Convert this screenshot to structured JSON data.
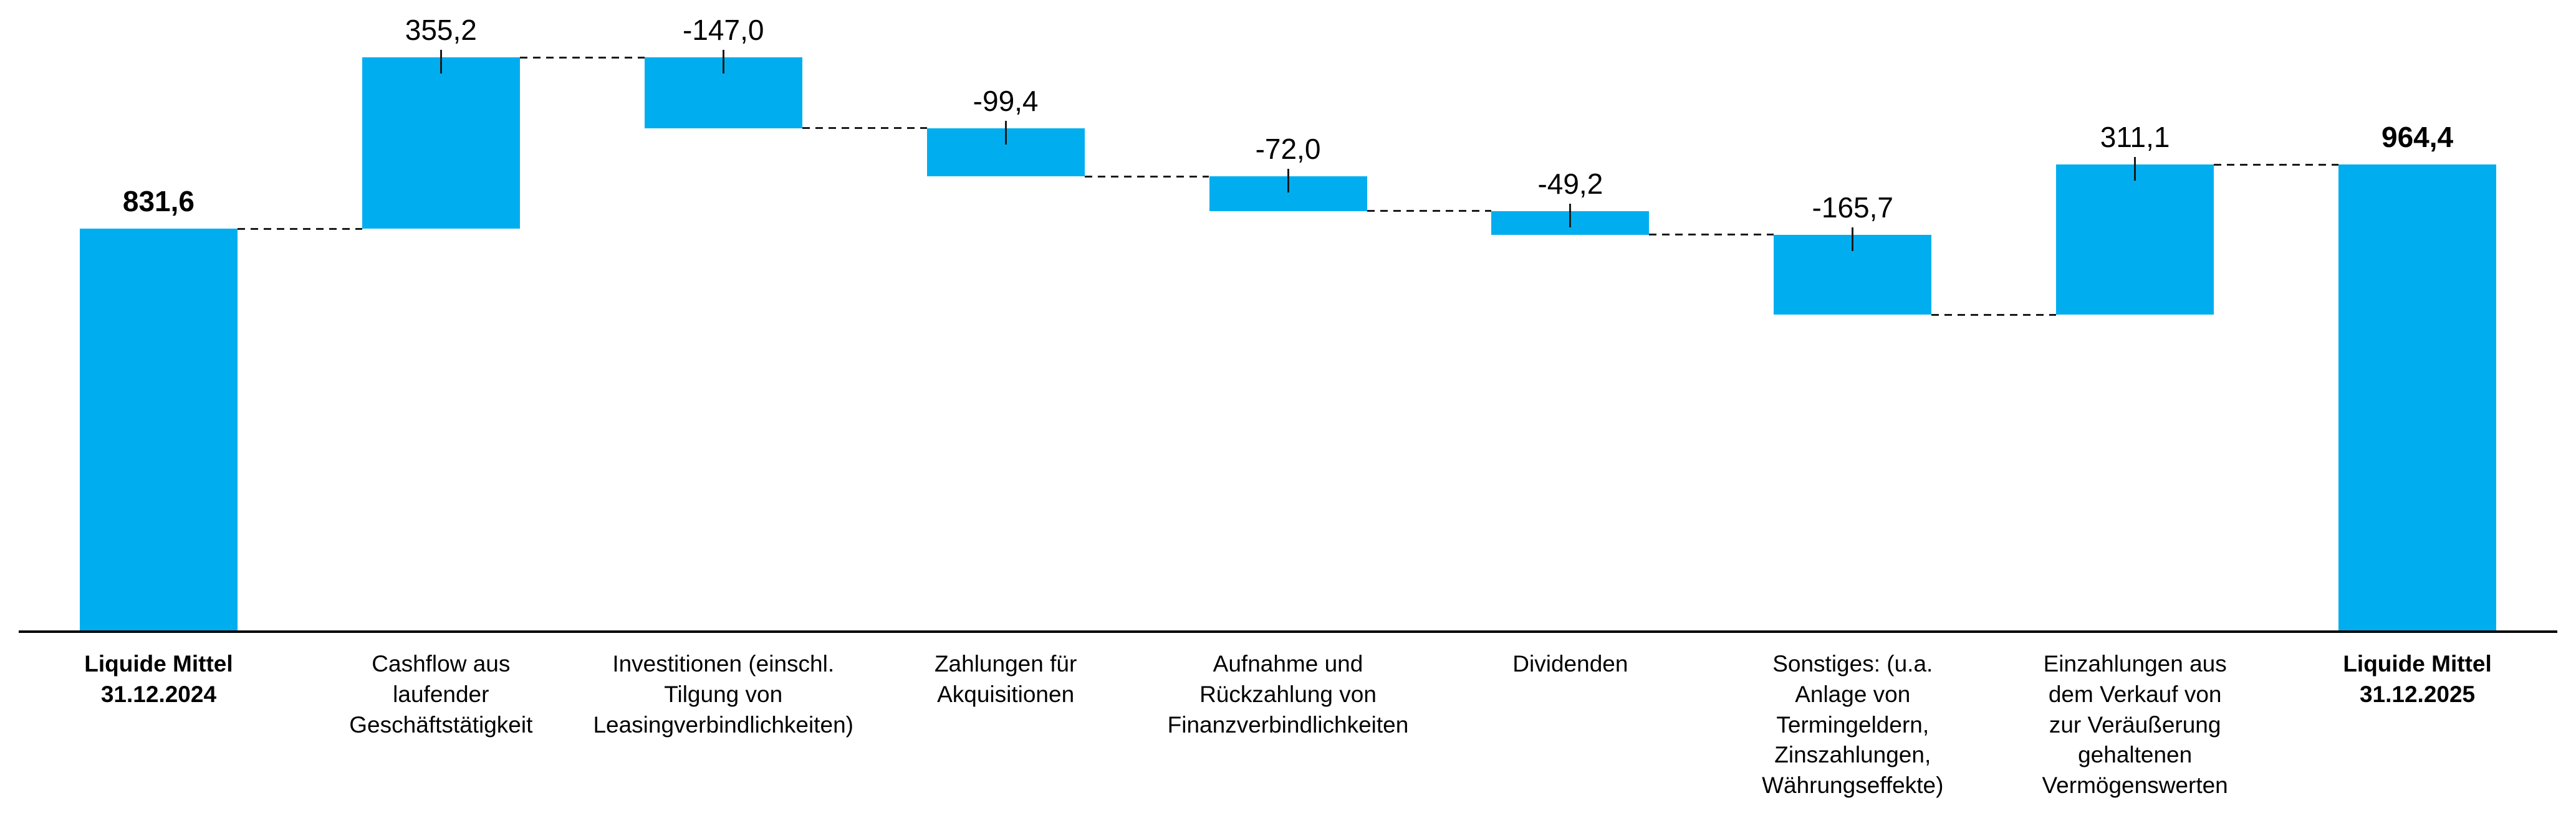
{
  "chart_data": {
    "type": "bar",
    "variant": "waterfall",
    "title": "",
    "xlabel": "",
    "ylabel": "",
    "legend": "none",
    "gridlines": false,
    "y_axis_visible": false,
    "number_format": "german-decimal-comma",
    "axis": {
      "baseline_value": 0,
      "max_cumulative_value": 1186.8
    },
    "items": [
      {
        "category": "Liquide Mittel\n31.12.2024",
        "value": 831.6,
        "value_label": "831,6",
        "kind": "total",
        "bold": true
      },
      {
        "category": "Cashflow aus\nlaufender\nGeschäftstätigkeit",
        "value": 355.2,
        "value_label": "355,2",
        "kind": "delta",
        "bold": false
      },
      {
        "category": "Investitionen (einschl.\nTilgung von\nLeasingverbindlichkeiten)",
        "value": -147.0,
        "value_label": "-147,0",
        "kind": "delta",
        "bold": false
      },
      {
        "category": "Zahlungen für\nAkquisitionen",
        "value": -99.4,
        "value_label": "-99,4",
        "kind": "delta",
        "bold": false
      },
      {
        "category": "Aufnahme und\nRückzahlung von\nFinanzverbindlichkeiten",
        "value": -72.0,
        "value_label": "-72,0",
        "kind": "delta",
        "bold": false
      },
      {
        "category": "Dividenden",
        "value": -49.2,
        "value_label": "-49,2",
        "kind": "delta",
        "bold": false
      },
      {
        "category": "Sonstiges: (u.a.\nAnlage von\nTermingeldern,\nZinszahlungen,\nWährungseffekte)",
        "value": -165.7,
        "value_label": "-165,7",
        "kind": "delta",
        "bold": false
      },
      {
        "category": "Einzahlungen aus\ndem Verkauf von\nzur Veräußerung\ngehaltenen\nVermögenswerten",
        "value": 311.1,
        "value_label": "311,1",
        "kind": "delta",
        "bold": false
      },
      {
        "category": "Liquide Mittel\n31.12.2025",
        "value": 964.4,
        "value_label": "964,4",
        "kind": "total",
        "bold": true
      }
    ],
    "colors": {
      "bar": "#00AEEF",
      "axis": "#000000",
      "connector": "#1a1a1a",
      "text": "#000000",
      "background": "#FFFFFF"
    }
  }
}
